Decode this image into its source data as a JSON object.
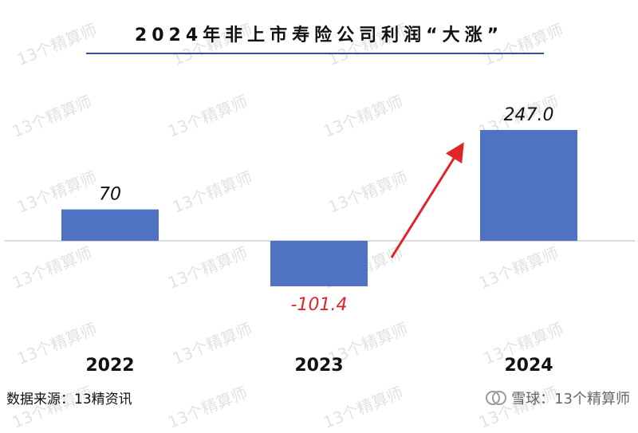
{
  "title": "2024年非上市寿险公司利润“大涨”",
  "watermark_text": "13个精算师",
  "source_text": "数据来源：13精资讯",
  "brand_text": "雪球：13个精算师",
  "chart_data": {
    "type": "bar",
    "categories": [
      "2022",
      "2023",
      "2024"
    ],
    "values": [
      70,
      -101.4,
      247.0
    ],
    "value_labels": [
      "70",
      "-101.4",
      "247.0"
    ],
    "ylim": [
      -101.4,
      247.0
    ],
    "grid": false,
    "bar_color": "#4f72c2",
    "negative_label_color": "#e0252a",
    "arrow_color": "#e0252a",
    "xlabel": "",
    "ylabel": ""
  }
}
